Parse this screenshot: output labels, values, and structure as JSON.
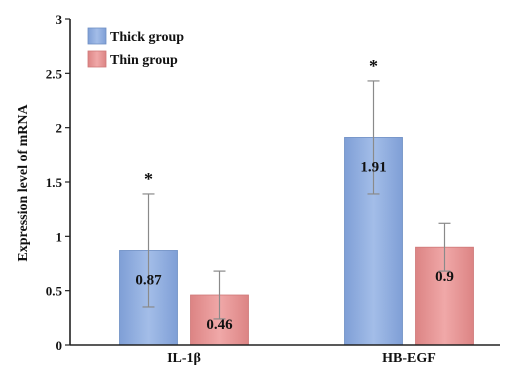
{
  "chart_data": {
    "type": "bar",
    "categories": [
      "IL-1β",
      "HB-EGF"
    ],
    "series": [
      {
        "name": "Thick group",
        "values": [
          0.87,
          1.91
        ],
        "error": [
          0.52,
          0.52
        ],
        "data_labels": [
          "0.87",
          "1.91"
        ],
        "significance": [
          "*",
          "*"
        ],
        "color": "#8faee0",
        "edge_color": "#6f8fc4"
      },
      {
        "name": "Thin group",
        "values": [
          0.46,
          0.9
        ],
        "error": [
          0.22,
          0.22
        ],
        "data_labels": [
          "0.46",
          "0.9"
        ],
        "significance": [
          "",
          ""
        ],
        "color": "#e89898",
        "edge_color": "#cf7878"
      }
    ],
    "ylabel": "Expression level of mRNA",
    "ylim": [
      0,
      3
    ],
    "yticks": [
      0,
      0.5,
      1,
      1.5,
      2,
      2.5,
      3
    ],
    "ytick_labels": [
      "0",
      "0.5",
      "1",
      "1.5",
      "2",
      "2.5",
      "3"
    ],
    "grid": false,
    "legend_position": "top-left"
  }
}
